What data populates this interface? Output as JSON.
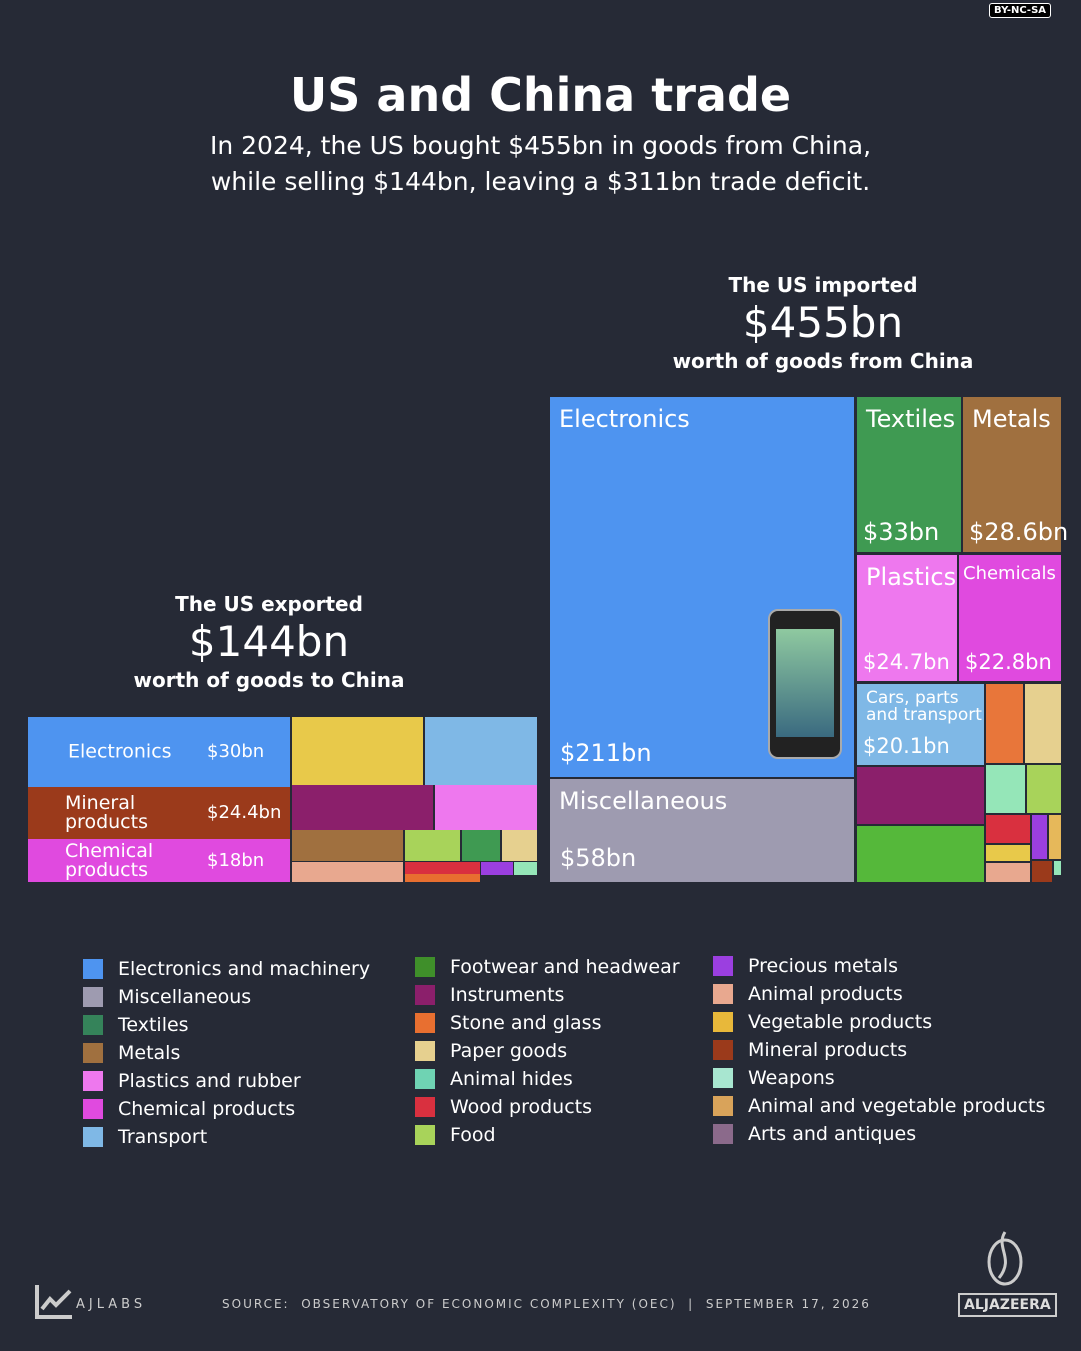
{
  "badge": "BY-NC-SA",
  "title": "US and China trade",
  "subtitle": [
    "In 2024, the US bought $455bn in goods from China,",
    "while selling $144bn, leaving a $311bn trade deficit."
  ],
  "chart_data": [
    {
      "type": "treemap",
      "heading": {
        "top": "The US exported",
        "amount": "$144bn",
        "bottom": "worth of goods to China"
      },
      "tiles": [
        {
          "label": "Electronics",
          "value": 30,
          "value_label": "$30bn",
          "color": "#4e94f0"
        },
        {
          "label": "Mineral products",
          "value": 24.4,
          "value_label": "$24.4bn",
          "color": "#9b3a1b"
        },
        {
          "label": "Chemical products",
          "value": 18,
          "value_label": "$18bn",
          "color": "#e04adf"
        },
        {
          "value": 15,
          "color": "#e8c94a"
        },
        {
          "value": 13,
          "color": "#7fb8e6"
        },
        {
          "value": 11,
          "color": "#8b1f6b"
        },
        {
          "value": 8,
          "color": "#ee78ee"
        },
        {
          "value": 6,
          "color": "#a0703f"
        },
        {
          "value": 3,
          "color": "#a8d35a"
        },
        {
          "value": 2,
          "color": "#3f9a52"
        },
        {
          "value": 2,
          "color": "#e6d08f"
        },
        {
          "value": 4,
          "color": "#e8a88f"
        },
        {
          "value": 1.5,
          "color": "#d9303f"
        },
        {
          "value": 1,
          "color": "#e86f30"
        },
        {
          "value": 0.7,
          "color": "#9b3fe0"
        },
        {
          "value": 0.5,
          "color": "#95e6b8"
        }
      ]
    },
    {
      "type": "treemap",
      "heading": {
        "top": "The US imported",
        "amount": "$455bn",
        "bottom": "worth of goods from China"
      },
      "tiles": [
        {
          "label": "Electronics",
          "value": 211,
          "value_label": "$211bn",
          "color": "#4e94f0"
        },
        {
          "label": "Miscellaneous",
          "value": 58,
          "value_label": "$58bn",
          "color": "#9e9bb0"
        },
        {
          "label": "Textiles",
          "value": 33,
          "value_label": "$33bn",
          "color": "#3f9a52"
        },
        {
          "label": "Metals",
          "value": 28.6,
          "value_label": "$28.6bn",
          "color": "#a0703f"
        },
        {
          "label": "Plastics",
          "value": 24.7,
          "value_label": "$24.7bn",
          "color": "#ee78ee"
        },
        {
          "label": "Chemicals",
          "value": 22.8,
          "value_label": "$22.8bn",
          "color": "#e04adf"
        },
        {
          "label": "Cars, parts and transport",
          "value": 20.1,
          "value_label": "$20.1bn",
          "color": "#7fb8e6"
        },
        {
          "value": 5.4,
          "color": "#e8763a"
        },
        {
          "value": 5.2,
          "color": "#e6d08f"
        },
        {
          "value": 13,
          "color": "#8b1f6b"
        },
        {
          "value": 13,
          "color": "#55b83a"
        },
        {
          "value": 3.4,
          "color": "#95e6b8"
        },
        {
          "value": 3,
          "color": "#a8d35a"
        },
        {
          "value": 2.3,
          "color": "#d9303f"
        },
        {
          "value": 1.2,
          "color": "#9b3fe0"
        },
        {
          "value": 1,
          "color": "#e6b85a"
        },
        {
          "value": 1.3,
          "color": "#e8c94a"
        },
        {
          "value": 1.5,
          "color": "#e8a88f"
        },
        {
          "value": 0.8,
          "color": "#9b3a1b"
        },
        {
          "value": 0.2,
          "color": "#95e6b8"
        }
      ]
    }
  ],
  "legend": [
    {
      "name": "Electronics and machinery",
      "color": "#4e94f0"
    },
    {
      "name": "Miscellaneous",
      "color": "#9e9bb0"
    },
    {
      "name": "Textiles",
      "color": "#35835a"
    },
    {
      "name": "Metals",
      "color": "#a0703f"
    },
    {
      "name": "Plastics and rubber",
      "color": "#ee78ee"
    },
    {
      "name": "Chemical products",
      "color": "#e04adf"
    },
    {
      "name": "Transport",
      "color": "#7fb8e6"
    },
    {
      "name": "Footwear and headwear",
      "color": "#3f8f2a"
    },
    {
      "name": "Instruments",
      "color": "#8b1f6b"
    },
    {
      "name": "Stone and glass",
      "color": "#e86f30"
    },
    {
      "name": "Paper goods",
      "color": "#e6d08f"
    },
    {
      "name": "Animal hides",
      "color": "#6fd3b3"
    },
    {
      "name": "Wood products",
      "color": "#d9303f"
    },
    {
      "name": "Food",
      "color": "#a8d35a"
    },
    {
      "name": "Precious metals",
      "color": "#9b3fe0"
    },
    {
      "name": "Animal products",
      "color": "#e8a88f"
    },
    {
      "name": "Vegetable products",
      "color": "#e8b83a"
    },
    {
      "name": "Mineral products",
      "color": "#9b3a1b"
    },
    {
      "name": "Weapons",
      "color": "#a8e6d0"
    },
    {
      "name": "Animal and vegetable products",
      "color": "#d9a35a"
    },
    {
      "name": "Arts and antiques",
      "color": "#8b6a8b"
    }
  ],
  "footer": {
    "brand": "AJLABS",
    "source": "SOURCE:  OBSERVATORY OF ECONOMIC COMPLEXITY (OEC)  |  SEPTEMBER 17, 2026",
    "logo": "ALJAZEERA"
  }
}
